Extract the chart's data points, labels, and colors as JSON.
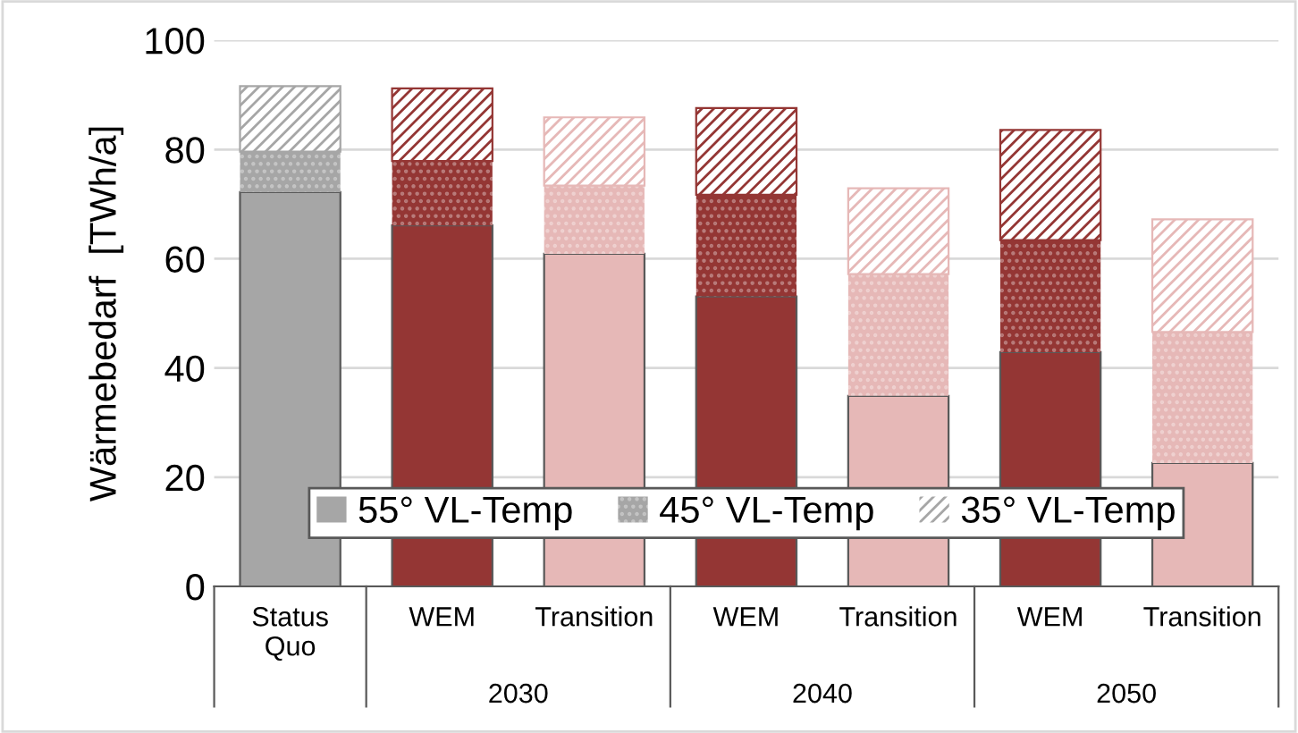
{
  "chart_data": {
    "type": "bar",
    "stacked": true,
    "ylabel": "Wärmebedarf  [TWh/a]",
    "categories": [
      "Status\nQuo",
      "WEM",
      "Transition",
      "WEM",
      "Transition",
      "WEM",
      "Transition"
    ],
    "annotations": [
      "2030",
      "2040",
      "2050"
    ],
    "series": [
      {
        "name": "55° VL-Temp",
        "color": "#a6a6a6",
        "colors": [
          "#a6a6a6",
          "#943634",
          "#e6b8b7",
          "#943634",
          "#e6b8b7",
          "#943634",
          "#e6b8b7"
        ],
        "values": [
          72.2,
          66.1,
          60.9,
          53.1,
          34.9,
          42.9,
          22.6
        ]
      },
      {
        "name": "45° VL-Temp",
        "color": "#a6a6a6",
        "colors": [
          "#a6a6a6",
          "#943634",
          "#e6b8b7",
          "#943634",
          "#e6b8b7",
          "#943634",
          "#e6b8b7"
        ],
        "values": [
          7.4,
          11.8,
          12.5,
          18.6,
          22.3,
          20.5,
          24.0
        ]
      },
      {
        "name": "35° VL-Temp",
        "color": "#a6a6a6",
        "colors": [
          "#a6a6a6",
          "#943634",
          "#e6b8b7",
          "#943634",
          "#e6b8b7",
          "#943634",
          "#e6b8b7"
        ],
        "values": [
          12.0,
          13.3,
          12.5,
          15.9,
          15.7,
          20.2,
          20.6
        ]
      }
    ],
    "ylim": [
      0,
      100
    ],
    "yticks": [
      0,
      20,
      40,
      60,
      80,
      100
    ],
    "grid": "y",
    "legend": "bottom"
  }
}
